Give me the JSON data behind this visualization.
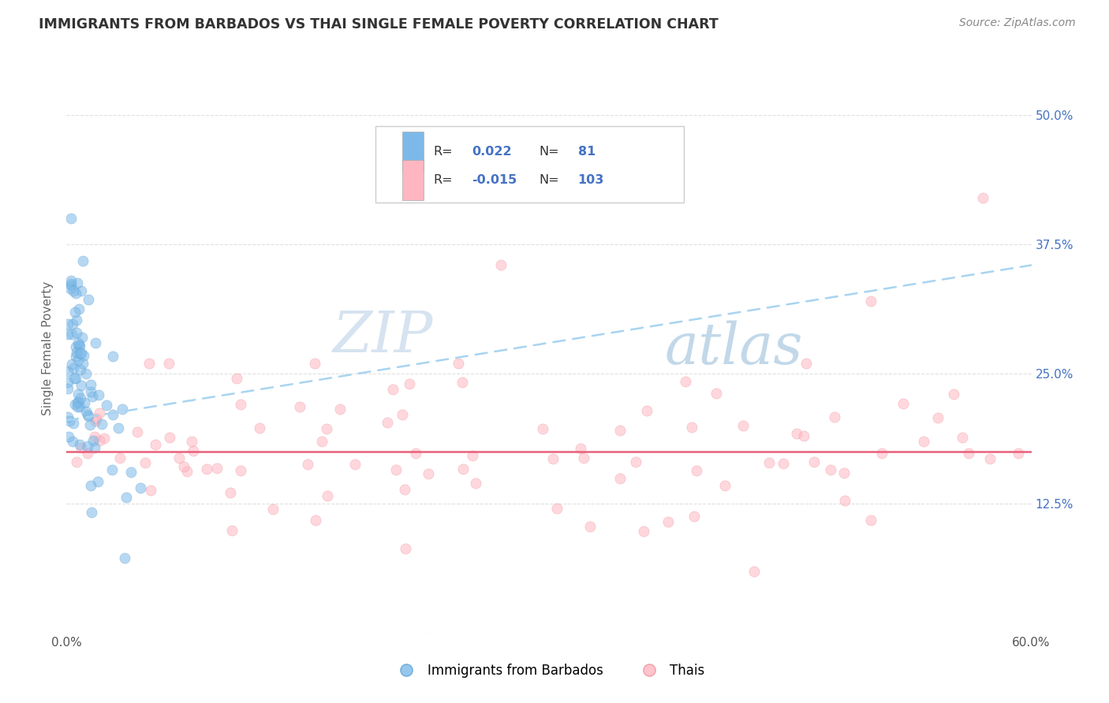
{
  "title": "IMMIGRANTS FROM BARBADOS VS THAI SINGLE FEMALE POVERTY CORRELATION CHART",
  "source_text": "Source: ZipAtlas.com",
  "ylabel": "Single Female Poverty",
  "xlim": [
    0.0,
    0.6
  ],
  "ylim": [
    0.0,
    0.55
  ],
  "legend_entries": [
    "Immigrants from Barbados",
    "Thais"
  ],
  "barbados_R": 0.022,
  "barbados_N": 81,
  "thai_R": -0.015,
  "thai_N": 103,
  "blue_color": "#7cb9e8",
  "pink_color": "#ffb6c1",
  "blue_scatter_edge": "#5a9fd4",
  "pink_scatter_edge": "#e8909a",
  "blue_line_color": "#a8d4f0",
  "pink_line_color": "#e8607a",
  "watermark_zip": "#c8d8e8",
  "watermark_atlas": "#a8c8e8",
  "background_color": "#ffffff",
  "grid_color": "#e0e0e0",
  "right_axis_color": "#4472c4",
  "title_color": "#333333",
  "source_color": "#888888"
}
